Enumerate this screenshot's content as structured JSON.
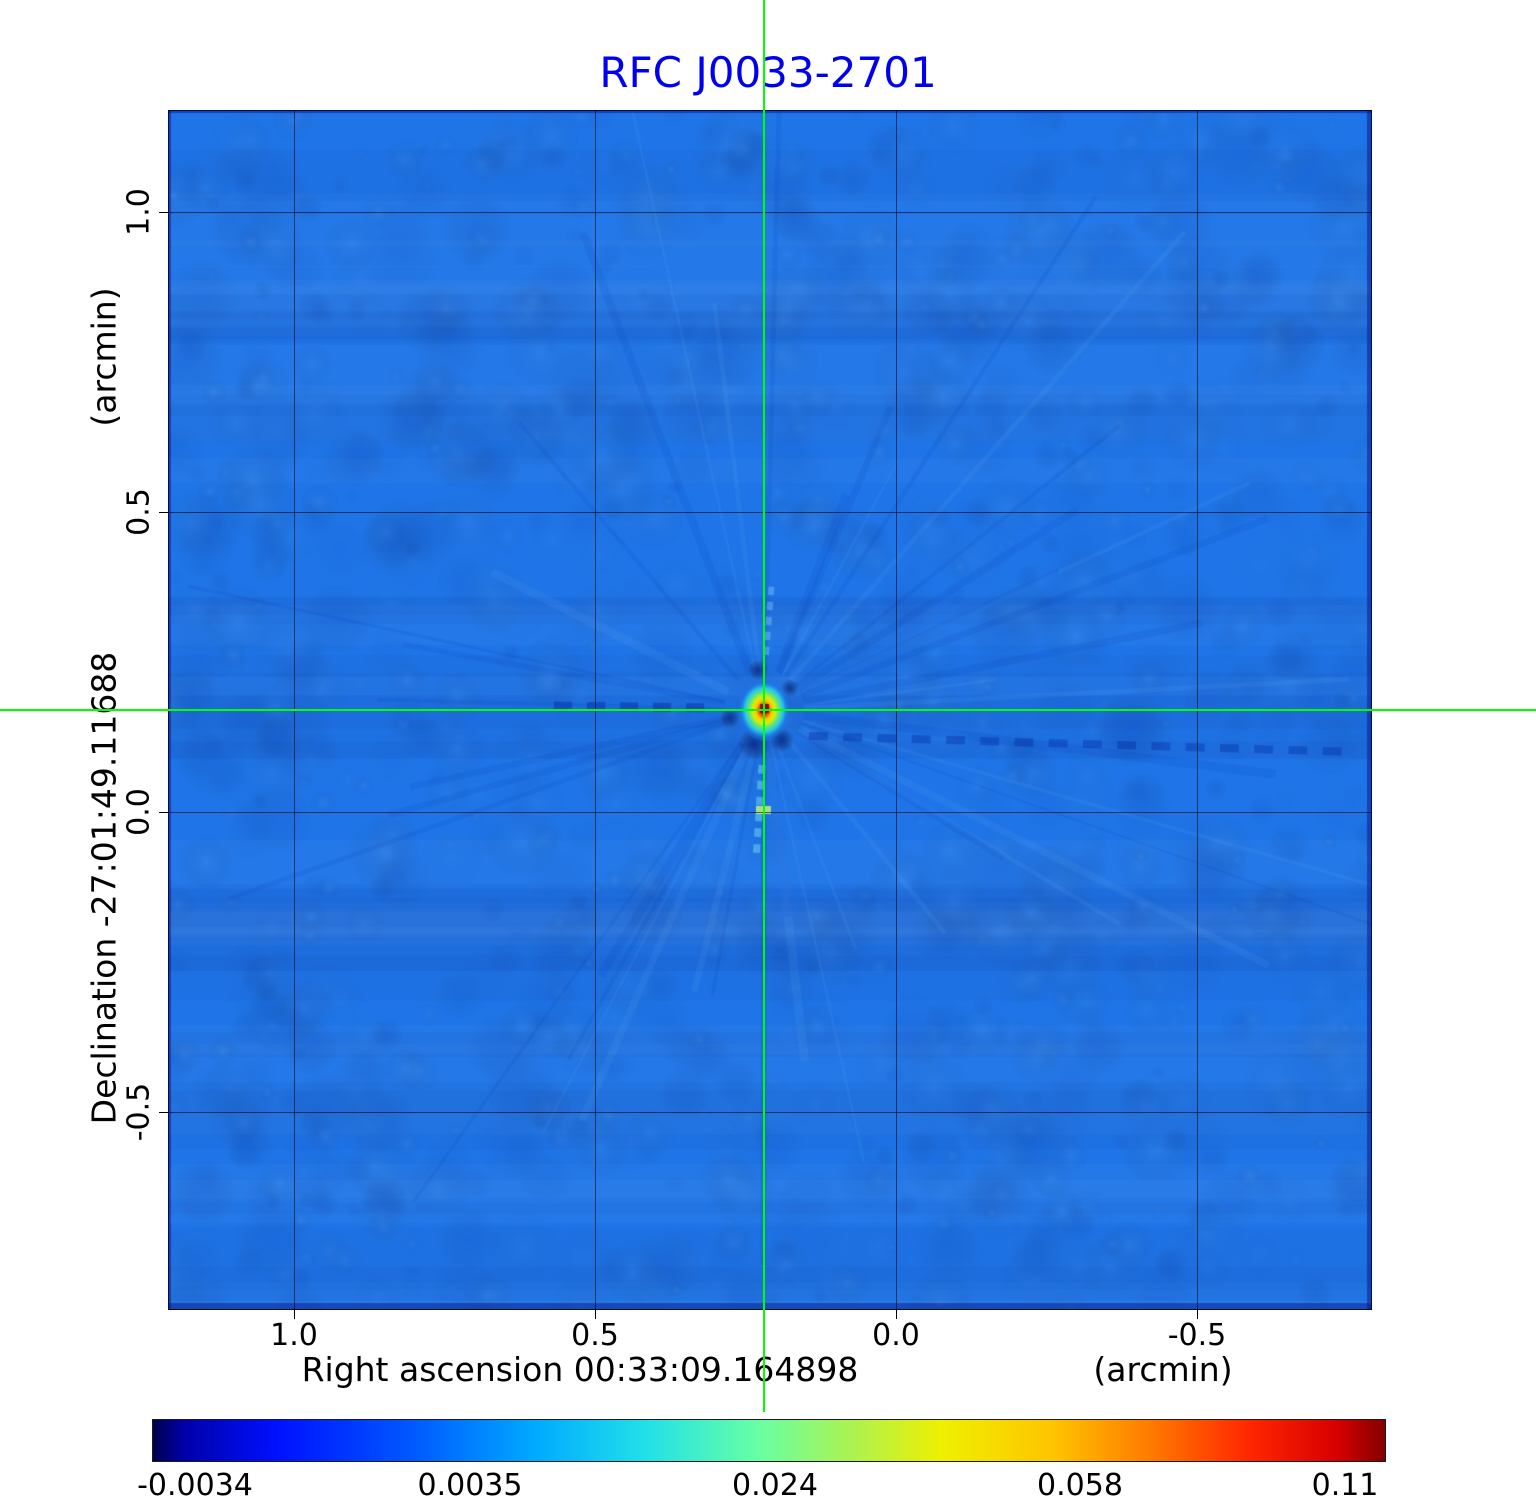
{
  "title": "RFC J0033-2701",
  "title_color": "#0000ee",
  "y_axis": {
    "unit_label": "(arcmin)",
    "axis_label": "Declination  -27:01:49.11688",
    "ticks": [
      "1.0",
      "0.5",
      "0.0",
      "-0.5"
    ]
  },
  "x_axis": {
    "axis_label": "Right ascension  00:33:09.164898",
    "unit_label": "(arcmin)",
    "ticks": [
      "1.0",
      "0.5",
      "0.0",
      "-0.5"
    ]
  },
  "colorbar": {
    "tick_labels": [
      "-0.0034",
      "0.0035",
      "0.024",
      "0.058",
      "0.11"
    ]
  },
  "chart_data": {
    "type": "heatmap",
    "title": "RFC J0033-2701",
    "xlabel": "Right ascension 00:33:09.164898 (arcmin)",
    "ylabel": "Declination -27:01:49.11688 (arcmin)",
    "x_ticks_arcmin": [
      1.0,
      0.5,
      0.0,
      -0.5
    ],
    "y_ticks_arcmin": [
      1.0,
      0.5,
      0.0,
      -0.5
    ],
    "x_range_arcmin": [
      1.21,
      -0.79
    ],
    "y_range_arcmin": [
      1.17,
      -0.83
    ],
    "colorbar_tick_values": [
      -0.0034,
      0.0035,
      0.024,
      0.058,
      0.11
    ],
    "colorbar_range": [
      -0.0034,
      0.11
    ],
    "colormap": "jet",
    "background_color": "#1f75e8",
    "peak": {
      "x_arcmin": 0.22,
      "y_arcmin": 0.17,
      "value": 0.11
    },
    "crosshair": {
      "x_arcmin": 0.22,
      "y_arcmin": 0.17,
      "color": "#00ff00"
    },
    "grid": true,
    "legend_position": "none"
  }
}
